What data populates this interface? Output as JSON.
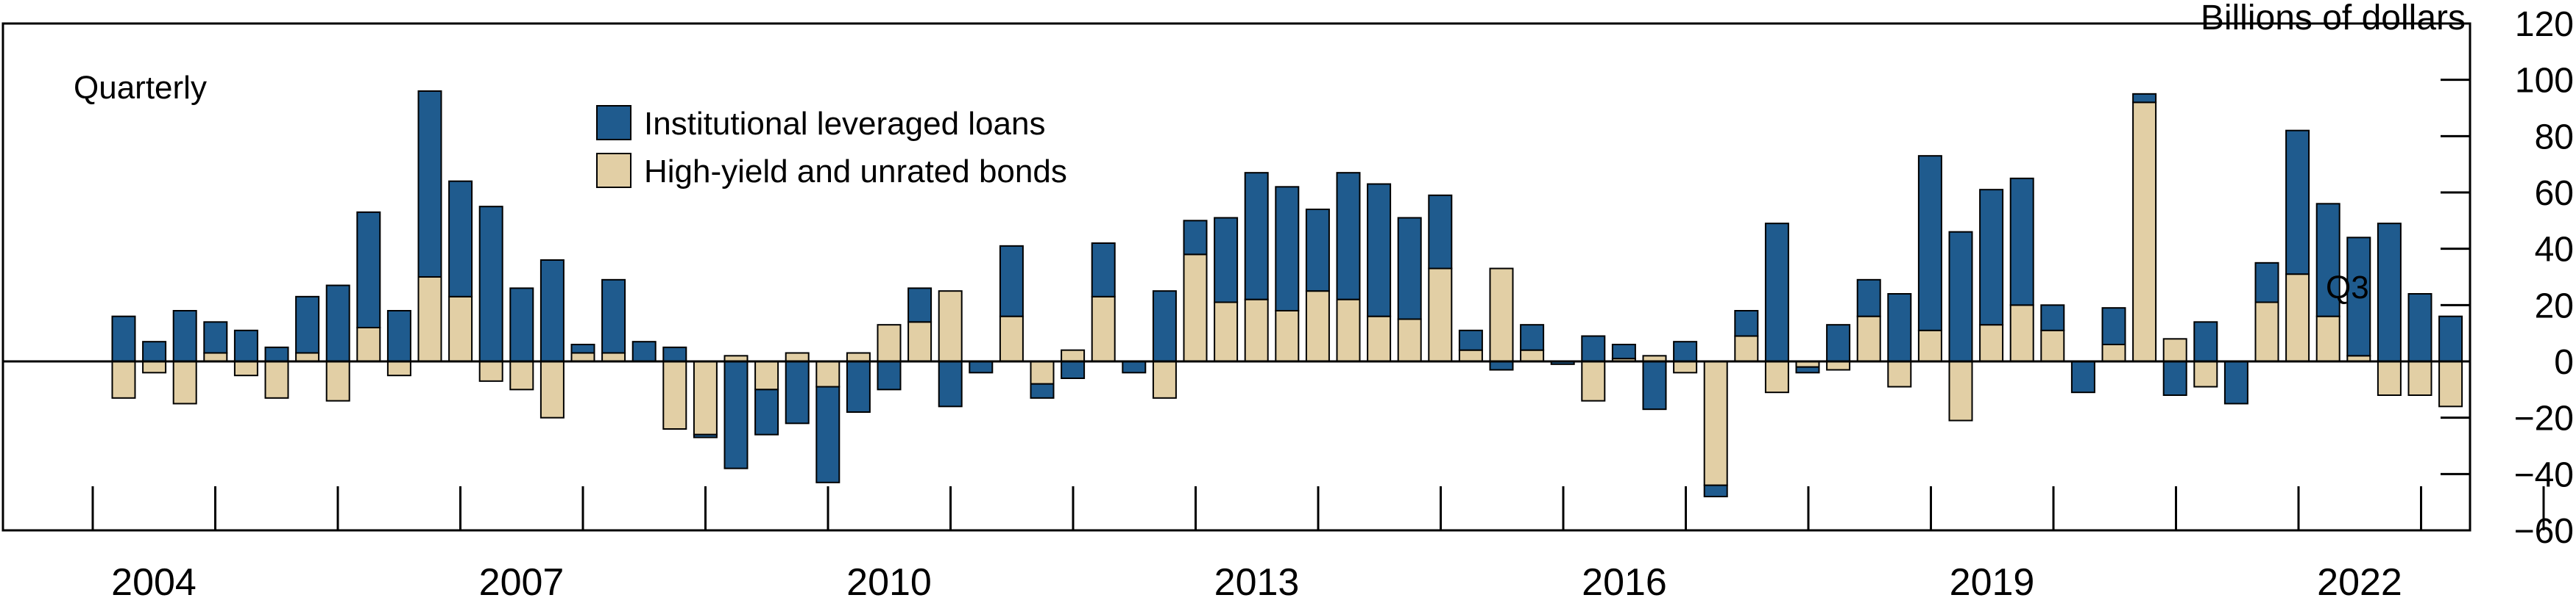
{
  "chart_data": {
    "type": "bar",
    "stacked": true,
    "frequency_label": "Quarterly",
    "units_label": "Billions of dollars",
    "latest_label": "Q3",
    "ylim": [
      -60,
      120
    ],
    "yticks": [
      120,
      100,
      80,
      60,
      40,
      20,
      0,
      -20,
      -40,
      -60
    ],
    "x_start": "2004Q1",
    "x_tick_labels": [
      "2004",
      "2007",
      "2010",
      "2013",
      "2016",
      "2019",
      "2022"
    ],
    "grid": false,
    "legend": {
      "placement": "top-left"
    },
    "series": [
      {
        "name": "Institutional leveraged loans",
        "color": "#1F5B8E",
        "values": [
          16,
          7,
          18,
          11,
          11,
          5,
          20,
          27,
          41,
          18,
          66,
          41,
          55,
          26,
          36,
          3,
          26,
          7,
          5,
          -1,
          -38,
          -16,
          -22,
          -34,
          -18,
          -10,
          12,
          -16,
          -4,
          25,
          -5,
          -6,
          19,
          -4,
          25,
          12,
          30,
          45,
          44,
          29,
          45,
          47,
          36,
          26,
          7,
          -3,
          9,
          -1,
          9,
          5,
          -17,
          7,
          -4,
          9,
          49,
          -2,
          13,
          13,
          24,
          62,
          46,
          48,
          45,
          9,
          -11,
          13,
          3,
          -12,
          14,
          -15,
          14,
          51,
          40,
          42,
          49,
          24,
          16
        ]
      },
      {
        "name": "High-yield and unrated bonds",
        "color": "#E2CFA5",
        "values": [
          -13,
          -4,
          -15,
          3,
          -5,
          -13,
          3,
          -14,
          12,
          -5,
          30,
          23,
          -7,
          -10,
          -20,
          3,
          3,
          0,
          -24,
          -26,
          2,
          -10,
          3,
          -9,
          3,
          13,
          14,
          25,
          0,
          16,
          -8,
          4,
          23,
          0,
          -13,
          38,
          21,
          22,
          18,
          25,
          22,
          16,
          15,
          33,
          4,
          33,
          4,
          0,
          -14,
          1,
          2,
          -4,
          -44,
          9,
          -11,
          -2,
          -3,
          16,
          -9,
          11,
          -21,
          13,
          20,
          11,
          0,
          6,
          92,
          8,
          -9,
          0,
          21,
          31,
          16,
          2,
          -12,
          -12,
          -16
        ]
      }
    ]
  }
}
